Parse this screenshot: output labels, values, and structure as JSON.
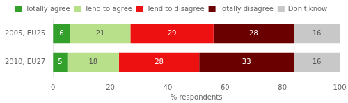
{
  "chart_data": {
    "type": "bar",
    "orientation": "horizontal",
    "stacked": true,
    "categories": [
      "2005, EU25",
      "2010, EU27"
    ],
    "series": [
      {
        "name": "Totally agree",
        "color": "#33a02c",
        "values": [
          6,
          5
        ]
      },
      {
        "name": "Tend to agree",
        "color": "#b8e08a",
        "values": [
          21,
          18
        ]
      },
      {
        "name": "Tend to disagree",
        "color": "#ee1111",
        "values": [
          29,
          28
        ]
      },
      {
        "name": "Totally disagree",
        "color": "#6b0000",
        "values": [
          28,
          33
        ]
      },
      {
        "name": "Don't know",
        "color": "#c8c8c8",
        "values": [
          16,
          16
        ]
      }
    ],
    "xlabel": "% respondents",
    "xlim": [
      0,
      100
    ],
    "xticks": [
      0,
      20,
      40,
      60,
      80,
      100
    ],
    "grid": false,
    "legend": "top",
    "data_labels": true
  }
}
